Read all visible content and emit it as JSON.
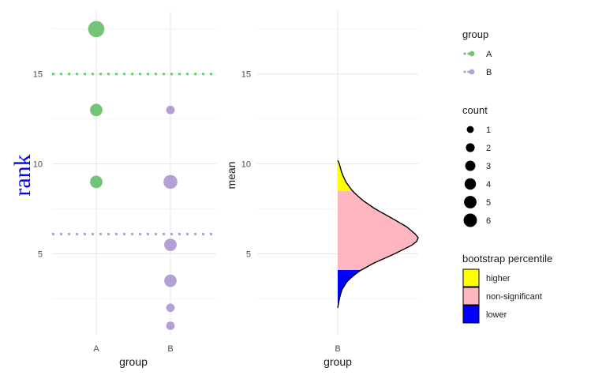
{
  "chart_data": [
    {
      "type": "scatter",
      "xlabel": "group",
      "ylabel": "rank",
      "ylabel_color": "#0000ff",
      "categories": [
        "A",
        "B"
      ],
      "yticks": [
        5,
        10,
        15
      ],
      "ylim": [
        0.5,
        18.5
      ],
      "grid": true,
      "points": [
        {
          "group": "A",
          "y": 17.5,
          "count": 6
        },
        {
          "group": "A",
          "y": 13,
          "count": 3
        },
        {
          "group": "A",
          "y": 9,
          "count": 3
        },
        {
          "group": "B",
          "y": 13,
          "count": 1
        },
        {
          "group": "B",
          "y": 9,
          "count": 4
        },
        {
          "group": "B",
          "y": 5.5,
          "count": 3
        },
        {
          "group": "B",
          "y": 3.5,
          "count": 3
        },
        {
          "group": "B",
          "y": 2,
          "count": 1
        },
        {
          "group": "B",
          "y": 1,
          "count": 1
        }
      ],
      "reference_lines": [
        {
          "group": "A",
          "y": 15,
          "style": "dotted"
        },
        {
          "group": "B",
          "y": 6.1,
          "style": "dotted"
        }
      ]
    },
    {
      "type": "area",
      "subtype": "half-violin density",
      "xlabel": "group",
      "ylabel": "mean",
      "categories": [
        "B"
      ],
      "yticks": [
        5,
        10,
        15
      ],
      "ylim": [
        0.5,
        18.5
      ],
      "grid": true,
      "density": {
        "y": [
          2.0,
          2.5,
          3.0,
          3.5,
          4.0,
          4.5,
          5.0,
          5.5,
          5.8,
          6.0,
          6.5,
          7.0,
          7.5,
          8.0,
          8.5,
          9.0,
          9.5,
          10.0,
          10.2
        ],
        "width": [
          0.0,
          0.02,
          0.05,
          0.12,
          0.25,
          0.45,
          0.7,
          0.92,
          1.0,
          0.98,
          0.85,
          0.66,
          0.46,
          0.3,
          0.18,
          0.1,
          0.05,
          0.02,
          0.0
        ]
      },
      "percentile_bands": [
        {
          "label": "lower",
          "from": 2.0,
          "to": 4.1
        },
        {
          "label": "non-significant",
          "from": 4.1,
          "to": 8.5
        },
        {
          "label": "higher",
          "from": 8.5,
          "to": 10.2
        }
      ]
    }
  ],
  "legend": {
    "placement": "right",
    "group": {
      "title": "group",
      "items": [
        {
          "label": "A",
          "color": "#74c476"
        },
        {
          "label": "B",
          "color": "#b3a1d6"
        }
      ]
    },
    "count": {
      "title": "count",
      "items": [
        1,
        2,
        3,
        4,
        5,
        6
      ],
      "labels": [
        "1",
        "2",
        "3",
        "4",
        "5",
        "6"
      ]
    },
    "bootstrap": {
      "title": "bootstrap percentile",
      "items": [
        {
          "label": "higher",
          "color": "#ffff00"
        },
        {
          "label": "non-significant",
          "color": "#ffb6c1"
        },
        {
          "label": "lower",
          "color": "#0000ff"
        }
      ]
    }
  }
}
